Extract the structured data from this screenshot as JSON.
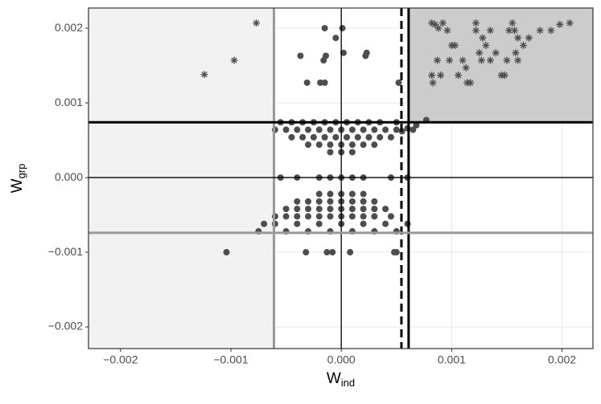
{
  "chart_data": {
    "type": "scatter",
    "xlabel": "W",
    "xlabel_sub": "ind",
    "ylabel": "W",
    "ylabel_sub": "grp",
    "xlim": [
      -0.00229,
      0.00228
    ],
    "ylim": [
      -0.00229,
      0.00227
    ],
    "xticks": [
      {
        "value": -0.002,
        "label": "−0.002"
      },
      {
        "value": -0.001,
        "label": "−0.001"
      },
      {
        "value": 0,
        "label": "0.000"
      },
      {
        "value": 0.001,
        "label": "0.001"
      },
      {
        "value": 0.002,
        "label": "0.002"
      }
    ],
    "yticks": [
      {
        "value": -0.002,
        "label": "−0.002"
      },
      {
        "value": -0.001,
        "label": "−0.001"
      },
      {
        "value": 0,
        "label": "0.000"
      },
      {
        "value": 0.001,
        "label": "0.001"
      },
      {
        "value": 0.002,
        "label": "0.002"
      }
    ],
    "grid": true,
    "regions": [
      {
        "x": [
          -0.00229,
          -0.00061
        ],
        "y": [
          -0.00229,
          0.00227
        ],
        "color": "#f2f2f2"
      },
      {
        "x": [
          0.00061,
          0.00228
        ],
        "y": [
          0.00074,
          0.00227
        ],
        "color": "#cccccc"
      }
    ],
    "vlines": [
      {
        "value": -0.00061,
        "color": "#999999",
        "width": 3,
        "dashed": false
      },
      {
        "value": 0,
        "color": "#000000",
        "width": 1.3,
        "dashed": false
      },
      {
        "value": 0.000545,
        "color": "#000000",
        "width": 3,
        "dashed": true
      },
      {
        "value": 0.00061,
        "color": "#000000",
        "width": 3,
        "dashed": false
      }
    ],
    "hlines": [
      {
        "value": 0.00074,
        "color": "#000000",
        "width": 3,
        "dashed": false
      },
      {
        "value": 0,
        "color": "#000000",
        "width": 1.3,
        "dashed": false
      },
      {
        "value": -0.00074,
        "color": "#999999",
        "width": 3,
        "dashed": false
      }
    ],
    "series": [
      {
        "marker": "circle",
        "color": "#4d4d4d",
        "x": [
          1e-05,
          -0.00015,
          -5e-05,
          -0.00037,
          -0.00014,
          -0.00016,
          0.00022,
          0.00023,
          -0.00031,
          -0.00019,
          -0.00015,
          2e-05,
          0.00052,
          -0.00055,
          -0.00045,
          -0.00035,
          -0.00025,
          -0.00015,
          -5e-05,
          5e-05,
          0.00015,
          0.00025,
          0.00035,
          0.0005,
          -0.0006,
          -0.0005,
          -0.0004,
          -0.0003,
          -0.0002,
          -0.0001,
          0,
          0.0001,
          0.0002,
          0.0003,
          0.0004,
          0.0005,
          0.00065,
          -0.00045,
          -0.00035,
          -0.00025,
          -0.00015,
          -5e-05,
          5e-05,
          0.00015,
          0.00025,
          0.00035,
          0.00045,
          -0.0003,
          -0.0002,
          -0.0001,
          0,
          0.0001,
          0.0002,
          0.0003,
          -0.0001,
          0,
          0.0001,
          0.00055,
          0.0006,
          0.00068,
          0.00077,
          -0.00055,
          -0.0004,
          -0.0002,
          -0.0001,
          0,
          0.0001,
          0.0002,
          0.00045,
          0.0006,
          -0.0002,
          -0.0001,
          0,
          0.0001,
          0.0002,
          -0.0004,
          -0.0003,
          -0.0002,
          -0.0001,
          0,
          0.0001,
          0.0002,
          0.0003,
          -0.0005,
          -0.0004,
          -0.0003,
          -0.0002,
          -0.0001,
          0,
          0.0001,
          0.0002,
          0.0003,
          0.0004,
          -0.0006,
          -0.0005,
          -0.0004,
          -0.0003,
          -0.0002,
          -0.0001,
          0,
          0.0001,
          0.0002,
          0.0003,
          0.00045,
          -0.0007,
          -0.0006,
          -0.0004,
          -0.0002,
          0,
          0.0002,
          0.0004,
          0.0006,
          -0.00075,
          -0.0005,
          -0.0003,
          -0.0001,
          0.0001,
          0.0003,
          0.0005,
          -0.00104,
          -0.00032,
          -0.00013,
          -8e-05,
          8e-05,
          0.00048,
          0.0005
        ],
        "values": [
          0.002,
          0.002,
          0.00187,
          0.00163,
          0.00163,
          0.00157,
          0.00163,
          0.00167,
          0.00127,
          0.00127,
          0.00127,
          0.00167,
          0.00127,
          0.00074,
          0.00074,
          0.00074,
          0.00074,
          0.00074,
          0.00074,
          0.00074,
          0.00074,
          0.00074,
          0.00074,
          0.00074,
          0.00064,
          0.00064,
          0.00064,
          0.00064,
          0.00064,
          0.00064,
          0.00064,
          0.00064,
          0.00064,
          0.00064,
          0.00064,
          0.00064,
          0.00064,
          0.00054,
          0.00054,
          0.00054,
          0.00054,
          0.00054,
          0.00054,
          0.00054,
          0.00054,
          0.00054,
          0.00054,
          0.00044,
          0.00044,
          0.00044,
          0.00044,
          0.00044,
          0.00044,
          0.00044,
          0.00034,
          0.00034,
          0.00034,
          0.00062,
          0.00066,
          0.0007,
          0.00077,
          0,
          0,
          0,
          0,
          0,
          0,
          0,
          0,
          0,
          -0.00022,
          -0.00022,
          -0.00022,
          -0.00022,
          -0.00022,
          -0.00032,
          -0.00032,
          -0.00032,
          -0.00032,
          -0.00032,
          -0.00032,
          -0.00032,
          -0.00032,
          -0.00042,
          -0.00042,
          -0.00042,
          -0.00042,
          -0.00042,
          -0.00042,
          -0.00042,
          -0.00042,
          -0.00042,
          -0.00042,
          -0.00052,
          -0.00052,
          -0.00052,
          -0.00052,
          -0.00052,
          -0.00052,
          -0.00052,
          -0.00052,
          -0.00052,
          -0.00052,
          -0.00052,
          -0.00062,
          -0.00062,
          -0.00062,
          -0.00062,
          -0.00062,
          -0.00062,
          -0.00062,
          -0.00062,
          -0.00072,
          -0.00072,
          -0.00072,
          -0.00072,
          -0.00072,
          -0.00072,
          -0.00072,
          -0.001,
          -0.001,
          -0.001,
          -0.001,
          -0.001,
          -0.001,
          -0.001
        ]
      },
      {
        "marker": "asterisk",
        "color": "#4d4d4d",
        "x": [
          -0.00124,
          -0.00097,
          -0.00077,
          0.00082,
          0.00085,
          0.00088,
          0.00092,
          0.00096,
          0.001,
          0.00103,
          0.00098,
          0.00087,
          0.00082,
          0.0009,
          0.00083,
          0.00106,
          0.0011,
          0.00113,
          0.00114,
          0.00117,
          0.00122,
          0.00122,
          0.00125,
          0.00127,
          0.00131,
          0.00135,
          0.0014,
          0.00145,
          0.00148,
          0.0015,
          0.00152,
          0.00155,
          0.00157,
          0.00158,
          0.0016,
          0.00165,
          0.0017,
          0.0018,
          0.0019,
          0.00198,
          0.00207,
          0.0016,
          0.00135,
          0.00128
        ],
        "values": [
          0.00138,
          0.00157,
          0.00207,
          0.00207,
          0.00205,
          0.002,
          0.00207,
          0.00197,
          0.00177,
          0.00177,
          0.00157,
          0.00157,
          0.00137,
          0.00137,
          0.00127,
          0.00137,
          0.00157,
          0.00147,
          0.00127,
          0.00127,
          0.00207,
          0.00197,
          0.00167,
          0.00157,
          0.00177,
          0.00157,
          0.00167,
          0.00137,
          0.00137,
          0.00157,
          0.00197,
          0.00207,
          0.00197,
          0.00167,
          0.00187,
          0.00177,
          0.00187,
          0.00197,
          0.00197,
          0.00205,
          0.00207,
          0.00157,
          0.00197,
          0.00187
        ]
      }
    ]
  }
}
